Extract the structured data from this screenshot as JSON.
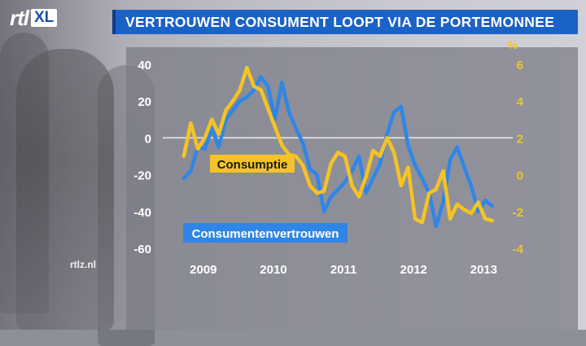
{
  "header": {
    "logo_text": "rtl",
    "logo_badge": "XL",
    "title": "VERTROUWEN CONSUMENT LOOPT VIA DE PORTEMONNEE",
    "watermark": "rtlz.nl"
  },
  "colors": {
    "title_bar": "#1b62c6",
    "consumer_confidence": "#2f86e6",
    "consumption": "#f5c325",
    "left_axis_text": "#ffffff",
    "right_axis_text": "#f5c325"
  },
  "chart_data": {
    "type": "line",
    "title": "VERTROUWEN CONSUMENT LOOPT VIA DE PORTEMONNEE",
    "x_tick_labels": [
      "2009",
      "2010",
      "2011",
      "2012",
      "2013"
    ],
    "x_tick_values": [
      2009.0,
      2010.0,
      2011.0,
      2012.0,
      2013.0
    ],
    "xlim": [
      2008.7,
      2013.6
    ],
    "y_left": {
      "ticks": [
        40,
        20,
        0,
        -20,
        -40,
        -60
      ],
      "tick_labels": [
        "40",
        "20",
        "0",
        "-20",
        "-40",
        "-60"
      ],
      "lim": [
        -60,
        43
      ]
    },
    "y_right": {
      "unit_label": "%",
      "ticks": [
        6,
        4,
        2,
        0,
        -2,
        -4
      ],
      "tick_labels": [
        "6",
        "4",
        "2",
        "0",
        "-2",
        "-4"
      ],
      "lim": [
        -4,
        6.3
      ]
    },
    "grid": "zero line only",
    "series": [
      {
        "name": "Consumentenvertrouwen",
        "axis": "left",
        "color": "#2f86e6",
        "x": [
          2009.0,
          2009.1,
          2009.2,
          2009.3,
          2009.4,
          2009.5,
          2009.6,
          2009.7,
          2009.8,
          2009.9,
          2010.0,
          2010.1,
          2010.2,
          2010.3,
          2010.4,
          2010.5,
          2010.6,
          2010.7,
          2010.8,
          2010.9,
          2011.0,
          2011.1,
          2011.2,
          2011.3,
          2011.4,
          2011.5,
          2011.6,
          2011.7,
          2011.8,
          2011.9,
          2012.0,
          2012.1,
          2012.2,
          2012.3,
          2012.4,
          2012.5,
          2012.6,
          2012.7,
          2012.8,
          2012.9,
          2013.0,
          2013.1,
          2013.2,
          2013.3,
          2013.4
        ],
        "values": [
          -22,
          -18,
          -5,
          -6,
          5,
          -5,
          10,
          15,
          20,
          22,
          26,
          33,
          28,
          10,
          30,
          14,
          5,
          -3,
          -17,
          -20,
          -40,
          -32,
          -28,
          -24,
          -18,
          -10,
          -30,
          -22,
          -14,
          2,
          14,
          17,
          -4,
          -15,
          -22,
          -30,
          -48,
          -35,
          -12,
          -5,
          -16,
          -26,
          -40,
          -34,
          -37
        ]
      },
      {
        "name": "Consumptie",
        "axis": "right",
        "color": "#f5c325",
        "x": [
          2009.0,
          2009.1,
          2009.2,
          2009.3,
          2009.4,
          2009.5,
          2009.6,
          2009.7,
          2009.8,
          2009.9,
          2010.0,
          2010.1,
          2010.2,
          2010.3,
          2010.4,
          2010.5,
          2010.6,
          2010.7,
          2010.8,
          2010.9,
          2011.0,
          2011.1,
          2011.2,
          2011.3,
          2011.4,
          2011.5,
          2011.6,
          2011.7,
          2011.8,
          2011.9,
          2012.0,
          2012.1,
          2012.2,
          2012.3,
          2012.4,
          2012.5,
          2012.6,
          2012.7,
          2012.8,
          2012.9,
          2013.0,
          2013.1,
          2013.2,
          2013.3,
          2013.4
        ],
        "values": [
          1.0,
          2.8,
          1.4,
          2.0,
          3.0,
          2.2,
          3.5,
          4.0,
          4.6,
          5.8,
          4.8,
          4.6,
          3.6,
          2.6,
          1.6,
          1.1,
          1.0,
          0.5,
          -0.6,
          -1.0,
          -0.9,
          0.6,
          1.2,
          1.0,
          -0.6,
          -1.2,
          -0.1,
          1.3,
          1.0,
          2.0,
          1.2,
          -0.6,
          0.4,
          -2.4,
          -2.6,
          -1.0,
          -0.8,
          0.2,
          -2.4,
          -1.6,
          -1.9,
          -2.1,
          -1.5,
          -2.4,
          -2.5
        ]
      }
    ],
    "annotations": [
      {
        "text": "Consumptie",
        "series": "Consumptie"
      },
      {
        "text": "Consumentenvertrouwen",
        "series": "Consumentenvertrouwen"
      }
    ]
  }
}
